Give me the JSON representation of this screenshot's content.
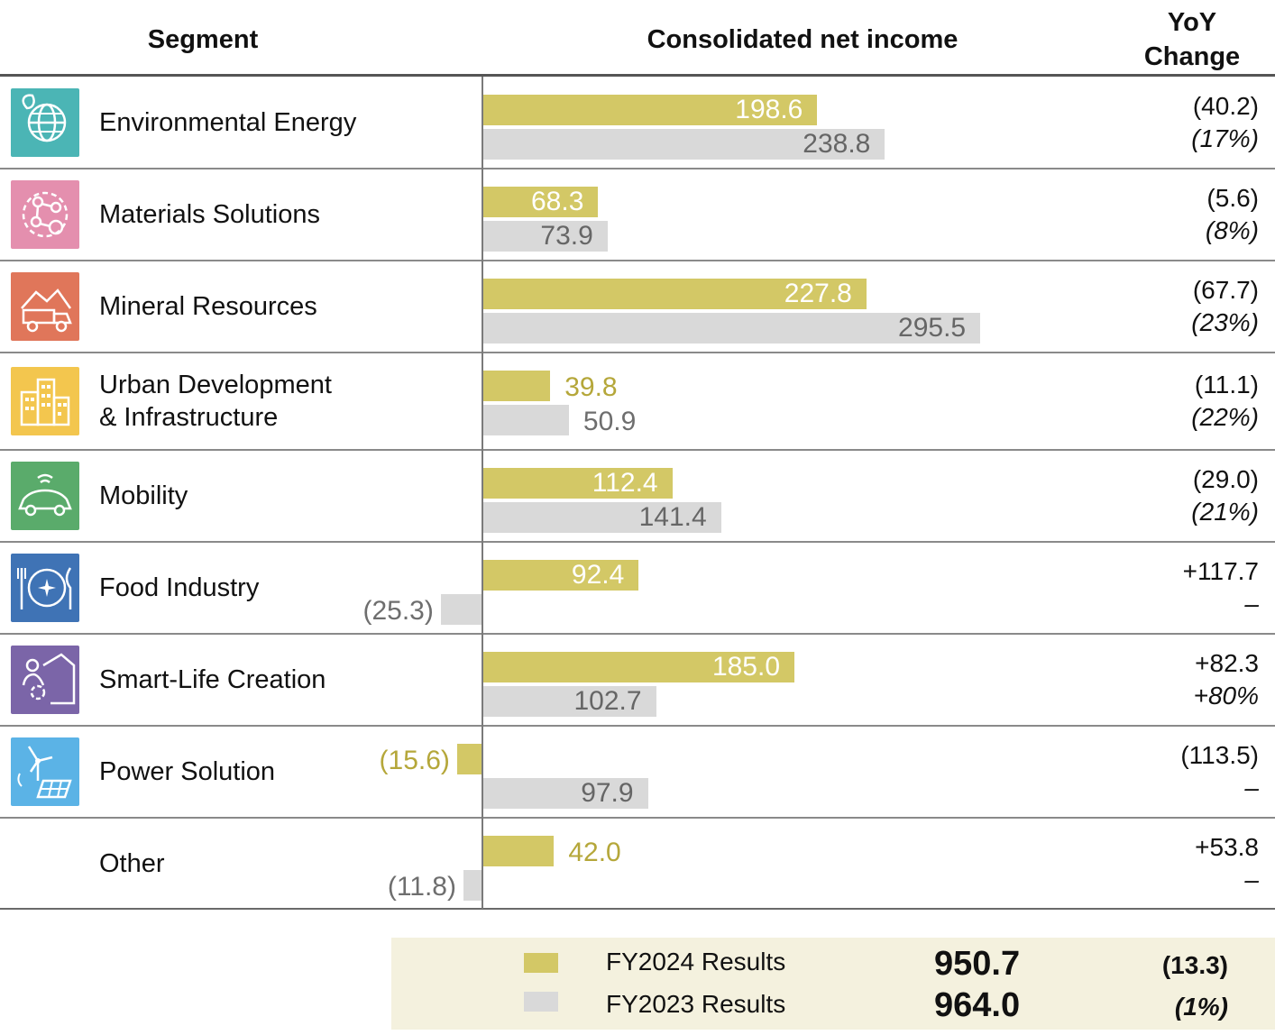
{
  "headers": {
    "segment": "Segment",
    "income": "Consolidated net income",
    "yoy_line1": "YoY",
    "yoy_line2": "Change"
  },
  "colors": {
    "fy2024": "#d3c866",
    "fy2023": "#d9d9d9",
    "fy2024_text_outside": "#b5a73a"
  },
  "chart_data": {
    "type": "bar",
    "orientation": "horizontal",
    "title": "Consolidated net income",
    "xlim": [
      -25.3,
      295.5
    ],
    "series": [
      {
        "name": "FY2024 Results",
        "values": [
          198.6,
          68.3,
          227.8,
          39.8,
          112.4,
          92.4,
          185.0,
          -15.6,
          42.0
        ]
      },
      {
        "name": "FY2023 Results",
        "values": [
          238.8,
          73.9,
          295.5,
          50.9,
          141.4,
          -25.3,
          102.7,
          97.9,
          -11.8
        ]
      }
    ],
    "categories": [
      "Environmental Energy",
      "Materials Solutions",
      "Mineral Resources",
      "Urban Development & Infrastructure",
      "Mobility",
      "Food Industry",
      "Smart-Life Creation",
      "Power Solution",
      "Other"
    ]
  },
  "segments": [
    {
      "key": "env",
      "label_lines": [
        "Environmental Energy"
      ],
      "icon": "globe-leaf-icon",
      "icon_color": "#4bb5b5",
      "cur_label": "198.6",
      "prev_label": "238.8",
      "yoy_value": "(40.2)",
      "yoy_pct": "(17%)"
    },
    {
      "key": "mat",
      "label_lines": [
        "Materials Solutions"
      ],
      "icon": "molecule-icon",
      "icon_color": "#e48fae",
      "cur_label": "68.3",
      "prev_label": "73.9",
      "yoy_value": "(5.6)",
      "yoy_pct": "(8%)"
    },
    {
      "key": "min",
      "label_lines": [
        "Mineral Resources"
      ],
      "icon": "mining-truck-icon",
      "icon_color": "#e0765a",
      "cur_label": "227.8",
      "prev_label": "295.5",
      "yoy_value": "(67.7)",
      "yoy_pct": "(23%)"
    },
    {
      "key": "urb",
      "label_lines": [
        "Urban Development",
        "& Infrastructure"
      ],
      "icon": "city-buildings-icon",
      "icon_color": "#f3c64e",
      "cur_label": "39.8",
      "prev_label": "50.9",
      "yoy_value": "(11.1)",
      "yoy_pct": "(22%)"
    },
    {
      "key": "mob",
      "label_lines": [
        "Mobility"
      ],
      "icon": "connected-car-icon",
      "icon_color": "#5aab6b",
      "cur_label": "112.4",
      "prev_label": "141.4",
      "yoy_value": "(29.0)",
      "yoy_pct": "(21%)"
    },
    {
      "key": "food",
      "label_lines": [
        "Food Industry"
      ],
      "icon": "plate-cutlery-icon",
      "icon_color": "#3f73b5",
      "cur_label": "92.4",
      "prev_label": "(25.3)",
      "yoy_value": "+117.7",
      "yoy_pct": "–"
    },
    {
      "key": "smart",
      "label_lines": [
        "Smart-Life Creation"
      ],
      "icon": "person-home-icon",
      "icon_color": "#7b65a8",
      "cur_label": "185.0",
      "prev_label": "102.7",
      "yoy_value": "+82.3",
      "yoy_pct": "+80%"
    },
    {
      "key": "power",
      "label_lines": [
        "Power Solution"
      ],
      "icon": "wind-solar-icon",
      "icon_color": "#5bb3e6",
      "cur_label": "(15.6)",
      "prev_label": "97.9",
      "yoy_value": "(113.5)",
      "yoy_pct": "–"
    },
    {
      "key": "other",
      "label_lines": [
        "Other"
      ],
      "icon": "",
      "icon_color": "",
      "cur_label": "42.0",
      "prev_label": "(11.8)",
      "yoy_value": "+53.8",
      "yoy_pct": "–"
    }
  ],
  "legend": {
    "fy2024": {
      "label": "FY2024 Results",
      "total": "950.7",
      "change": "(13.3)"
    },
    "fy2023": {
      "label": "FY2023 Results",
      "total": "964.0",
      "change": "(1%)"
    }
  }
}
